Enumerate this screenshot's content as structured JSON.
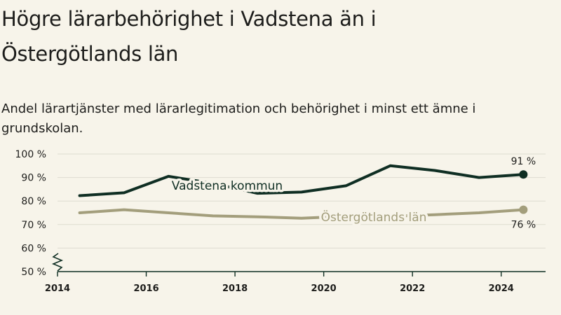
{
  "header": {
    "title": "Högre lärarbehörighet i Vadstena än i Östergötlands län",
    "subtitle": "Andel lärartjänster med lärarlegitimation och behörighet i minst ett ämne i grundskolan."
  },
  "colors": {
    "background": "#f7f4ea",
    "vadstena": "#0f2e23",
    "ostergotland": "#a39e7c",
    "grid": "#dedbd0",
    "axis": "#0f2e23"
  },
  "chart_data": {
    "type": "line",
    "x": [
      2014.5,
      2015.5,
      2016.5,
      2017.5,
      2018.5,
      2019.5,
      2020.5,
      2021.5,
      2022.5,
      2023.5,
      2024.5
    ],
    "series": [
      {
        "name": "Vadstena kommun",
        "values": [
          82.3,
          83.5,
          90.5,
          87.5,
          83.3,
          83.8,
          86.5,
          95,
          93,
          90,
          91.3
        ],
        "end_label": "91 %"
      },
      {
        "name": "Östergötlands län",
        "values": [
          75,
          76.3,
          75,
          73.7,
          73.3,
          72.7,
          73.5,
          73.5,
          74.2,
          75,
          76.3
        ],
        "end_label": "76 %"
      }
    ],
    "xticks": [
      2014,
      2016,
      2018,
      2020,
      2022,
      2024
    ],
    "xtick_labels": [
      "2014",
      "2016",
      "2018",
      "2020",
      "2022",
      "2024"
    ],
    "yticks": [
      50,
      60,
      70,
      80,
      90,
      100
    ],
    "ytick_labels": [
      "50 %",
      "60 %",
      "70 %",
      "80 %",
      "90 %",
      "100 %"
    ],
    "xlim": [
      2014,
      2025
    ],
    "ylim": [
      50,
      100
    ],
    "axis_break": true,
    "grid": "horizontal"
  }
}
